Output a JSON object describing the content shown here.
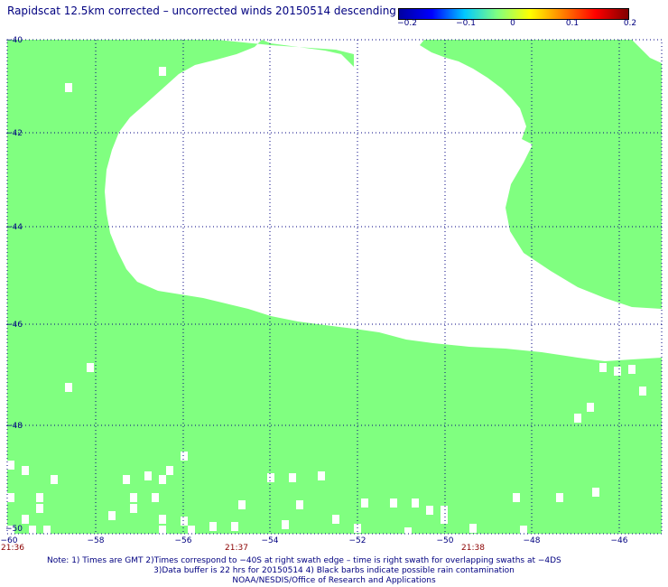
{
  "title": "Rapidscat 12.5km corrected – uncorrected winds 20150514 descending",
  "colorbar": {
    "ticks": [
      "−0.2",
      "−0.1",
      "0",
      "0.1",
      "0.2"
    ],
    "stops": [
      "#0000a0",
      "#0000ff",
      "#00c8ff",
      "#80ff80",
      "#ffff00",
      "#ff8000",
      "#ff0000",
      "#800000"
    ]
  },
  "map": {
    "lon_range": [
      -60,
      -45
    ],
    "lat_range": [
      -40,
      -50
    ],
    "x_ticks": [
      "−60",
      "−58",
      "−56",
      "−54",
      "−52",
      "−50",
      "−48",
      "−46"
    ],
    "y_ticks": [
      "−40",
      "−42",
      "−44",
      "−46",
      "−48",
      "−50"
    ],
    "times": [
      "21:36",
      "21:37",
      "21:38"
    ],
    "wind_difference_color": "#80ff80",
    "grid": "dotted"
  },
  "notes": {
    "line1": "Note: 1) Times are GMT 2)Times correspond to −40S at right swath edge – time is right swath for overlapping swaths at −4DS",
    "line2": "3)Data buffer is 22 hrs for 20150514 4) Black barbs indicate possible rain contamination",
    "line3": "NOAA/NESDIS/Office of Research and Applications"
  }
}
